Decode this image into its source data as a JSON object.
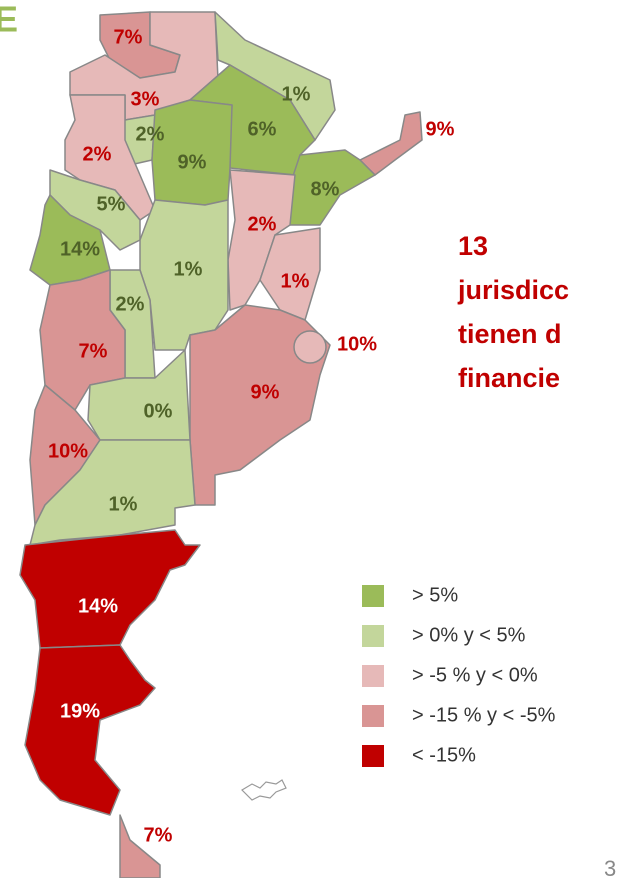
{
  "header": {
    "corner_letter": "E"
  },
  "regions": [
    {
      "label": "7%",
      "color": "#d99594",
      "text_color": "#c00000"
    },
    {
      "label": "3%",
      "color": "#e6b9b8",
      "text_color": "#c00000"
    },
    {
      "label": "1%",
      "color": "#c3d69b",
      "text_color": "#4f6228"
    },
    {
      "label": "6%",
      "color": "#9bbb59",
      "text_color": "#4f6228"
    },
    {
      "label": "9%",
      "color": "#d99594",
      "text_color": "#c00000"
    },
    {
      "label": "2%",
      "color": "#c3d69b",
      "text_color": "#4f6228"
    },
    {
      "label": "2%",
      "color": "#e6b9b8",
      "text_color": "#c00000"
    },
    {
      "label": "9%",
      "color": "#9bbb59",
      "text_color": "#4f6228"
    },
    {
      "label": "8%",
      "color": "#9bbb59",
      "text_color": "#4f6228"
    },
    {
      "label": "5%",
      "color": "#c3d69b",
      "text_color": "#4f6228"
    },
    {
      "label": "2%",
      "color": "#e6b9b8",
      "text_color": "#c00000"
    },
    {
      "label": "14%",
      "color": "#9bbb59",
      "text_color": "#4f6228"
    },
    {
      "label": "1%",
      "color": "#c3d69b",
      "text_color": "#4f6228"
    },
    {
      "label": "1%",
      "color": "#e6b9b8",
      "text_color": "#c00000"
    },
    {
      "label": "2%",
      "color": "#c3d69b",
      "text_color": "#4f6228"
    },
    {
      "label": "7%",
      "color": "#d99594",
      "text_color": "#c00000"
    },
    {
      "label": "9%",
      "color": "#d99594",
      "text_color": "#c00000"
    },
    {
      "label": "10%",
      "color": "#e6b9b8",
      "text_color": "#c00000"
    },
    {
      "label": "0%",
      "color": "#c3d69b",
      "text_color": "#4f6228"
    },
    {
      "label": "10%",
      "color": "#d99594",
      "text_color": "#c00000"
    },
    {
      "label": "1%",
      "color": "#c3d69b",
      "text_color": "#4f6228"
    },
    {
      "label": "14%",
      "color": "#c00000",
      "text_color": "#ffffff"
    },
    {
      "label": "19%",
      "color": "#c00000",
      "text_color": "#ffffff"
    },
    {
      "label": "7%",
      "color": "#d99594",
      "text_color": "#c00000"
    }
  ],
  "headline": [
    "13",
    "jurisdicc",
    "tienen d",
    "financie"
  ],
  "legend": [
    {
      "label": "> 5%",
      "color": "#9bbb59"
    },
    {
      "label": "> 0% y < 5%",
      "color": "#c3d69b"
    },
    {
      "label": "> -5 % y < 0%",
      "color": "#e6b9b8"
    },
    {
      "label": "> -15 % y < -5%",
      "color": "#d99594"
    },
    {
      "label": "< -15%",
      "color": "#c00000"
    }
  ],
  "page_number": "3"
}
